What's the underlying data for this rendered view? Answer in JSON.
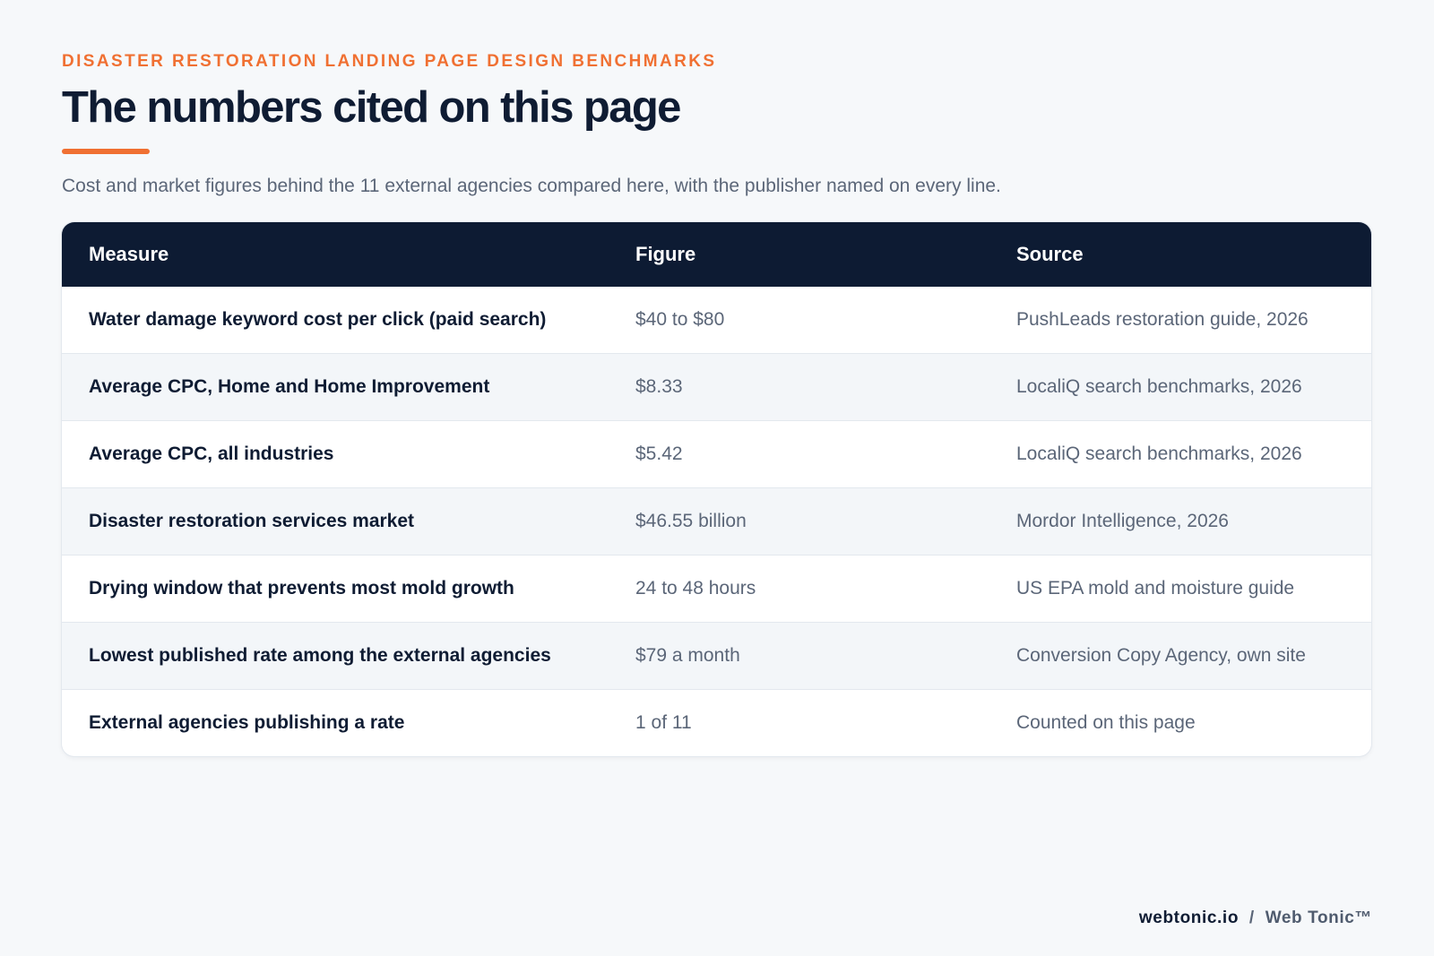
{
  "header": {
    "eyebrow": "DISASTER RESTORATION LANDING PAGE DESIGN BENCHMARKS",
    "title": "The numbers cited on this page",
    "subtitle": "Cost and market figures behind the 11 external agencies compared here, with the publisher named on every line."
  },
  "table": {
    "columns": [
      "Measure",
      "Figure",
      "Source"
    ],
    "rows": [
      {
        "measure": "Water damage keyword cost per click (paid search)",
        "figure": "$40 to $80",
        "source": "PushLeads restoration guide, 2026"
      },
      {
        "measure": "Average CPC, Home and Home Improvement",
        "figure": "$8.33",
        "source": "LocaliQ search benchmarks, 2026"
      },
      {
        "measure": "Average CPC, all industries",
        "figure": "$5.42",
        "source": "LocaliQ search benchmarks, 2026"
      },
      {
        "measure": "Disaster restoration services market",
        "figure": "$46.55 billion",
        "source": "Mordor Intelligence, 2026"
      },
      {
        "measure": "Drying window that prevents most mold growth",
        "figure": "24 to 48 hours",
        "source": "US EPA mold and moisture guide"
      },
      {
        "measure": "Lowest published rate among the external agencies",
        "figure": "$79 a month",
        "source": "Conversion Copy Agency, own site"
      },
      {
        "measure": "External agencies publishing a rate",
        "figure": "1 of 11",
        "source": "Counted on this page"
      }
    ]
  },
  "footer": {
    "domain": "webtonic.io",
    "separator": "/",
    "brand": "Web Tonic™"
  },
  "colors": {
    "accent": "#f07032",
    "navy": "#0d1b33",
    "background": "#f6f8fa"
  }
}
